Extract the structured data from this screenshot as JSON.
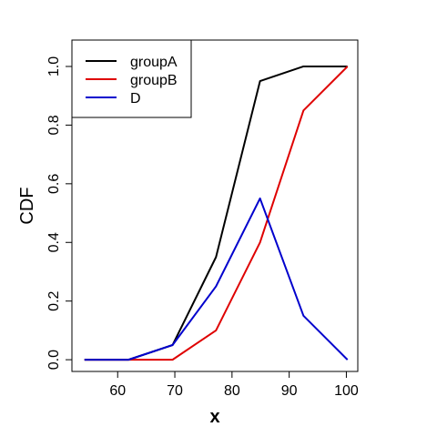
{
  "chart_data": {
    "type": "line",
    "title": "",
    "xlabel": "x",
    "ylabel": "CDF",
    "xlim": [
      52,
      102
    ],
    "ylim": [
      -0.04,
      1.09
    ],
    "x_ticks": [
      60,
      70,
      80,
      90,
      100
    ],
    "y_ticks": [
      0.0,
      0.2,
      0.4,
      0.6,
      0.8,
      1.0
    ],
    "x_tick_labels": [
      "60",
      "70",
      "80",
      "90",
      "100"
    ],
    "y_tick_labels": [
      "0.0",
      "0.2",
      "0.4",
      "0.6",
      "0.8",
      "1.0"
    ],
    "x": [
      54.2,
      61.9,
      69.6,
      77.2,
      84.9,
      92.5,
      100.2
    ],
    "series": [
      {
        "name": "groupA",
        "color": "#000000",
        "values": [
          0.0,
          0.0,
          0.05,
          0.35,
          0.95,
          1.0,
          1.0
        ]
      },
      {
        "name": "groupB",
        "color": "#DF0000",
        "values": [
          0.0,
          0.0,
          0.0,
          0.1,
          0.4,
          0.85,
          1.0
        ]
      },
      {
        "name": "D",
        "color": "#0000CD",
        "values": [
          0.0,
          0.0,
          0.05,
          0.25,
          0.55,
          0.15,
          0.0
        ]
      }
    ],
    "grid": false,
    "legend_position": "top-left"
  }
}
